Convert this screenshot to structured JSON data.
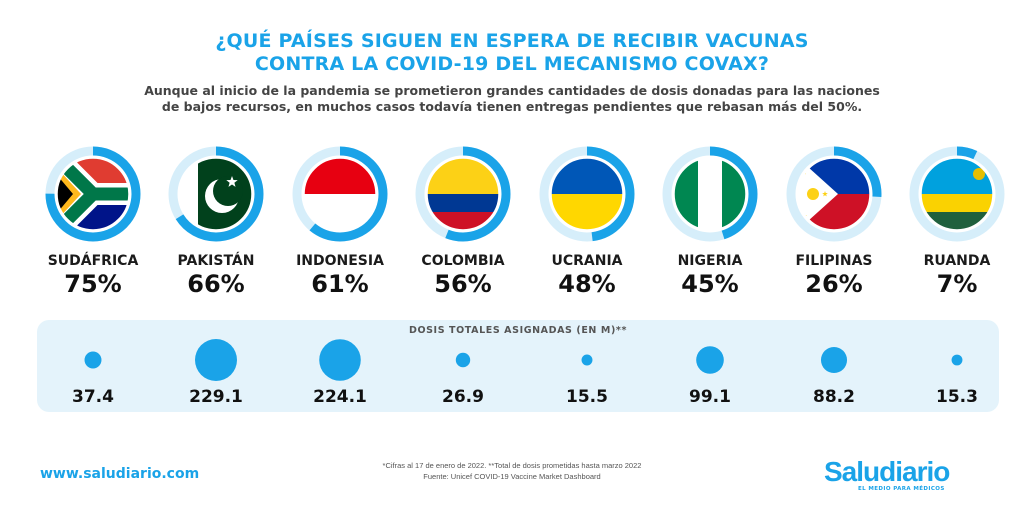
{
  "title_line1": "¿QUÉ PAÍSES SIGUEN EN ESPERA DE RECIBIR VACUNAS",
  "title_line2": "CONTRA LA COVID-19 DEL MECANISMO COVAX?",
  "subtitle_line1": "Aunque al inicio de la pandemia se prometieron grandes cantidades de dosis donadas para las naciones",
  "subtitle_line2": "de bajos recursos, en muchos casos todavía tienen entregas pendientes que rebasan más del 50%.",
  "doses_title": "DOSIS TOTALES ASIGNADAS (EN M)**",
  "footnote_line1": "*Cifras al 17 de enero de 2022.  **Total de dosis prometidas hasta marzo 2022",
  "footnote_line2": "Fuente: Unicef COVID-19 Vaccine Market Dashboard",
  "website": "www.saludiario.com",
  "logo": "Saludiario",
  "logo_tagline": "EL MEDIO PARA MÉDICOS",
  "colors": {
    "accent": "#1aa3e8",
    "ring_track": "#d6eefa",
    "panel": "#e4f3fb"
  },
  "chart_data": {
    "type": "bar",
    "categories": [
      "SUDÁFRICA",
      "PAKISTÁN",
      "INDONESIA",
      "COLOMBIA",
      "UCRANIA",
      "NIGERIA",
      "FILIPINAS",
      "RUANDA"
    ],
    "pending_labels": [
      "75%",
      "66%",
      "61%",
      "56%",
      "48%",
      "45%",
      "26%",
      "7%"
    ],
    "pending_percent": [
      75,
      66,
      61,
      56,
      48,
      45,
      26,
      7
    ],
    "doses_labels": [
      "37.4",
      "229.1",
      "224.1",
      "26.9",
      "15.5",
      "99.1",
      "88.2",
      "15.3"
    ],
    "doses_millions": [
      37.4,
      229.1,
      224.1,
      26.9,
      15.5,
      99.1,
      88.2,
      15.3
    ],
    "flags": [
      "south-africa",
      "pakistan",
      "indonesia",
      "colombia",
      "ukraine",
      "nigeria",
      "philippines",
      "rwanda"
    ]
  }
}
